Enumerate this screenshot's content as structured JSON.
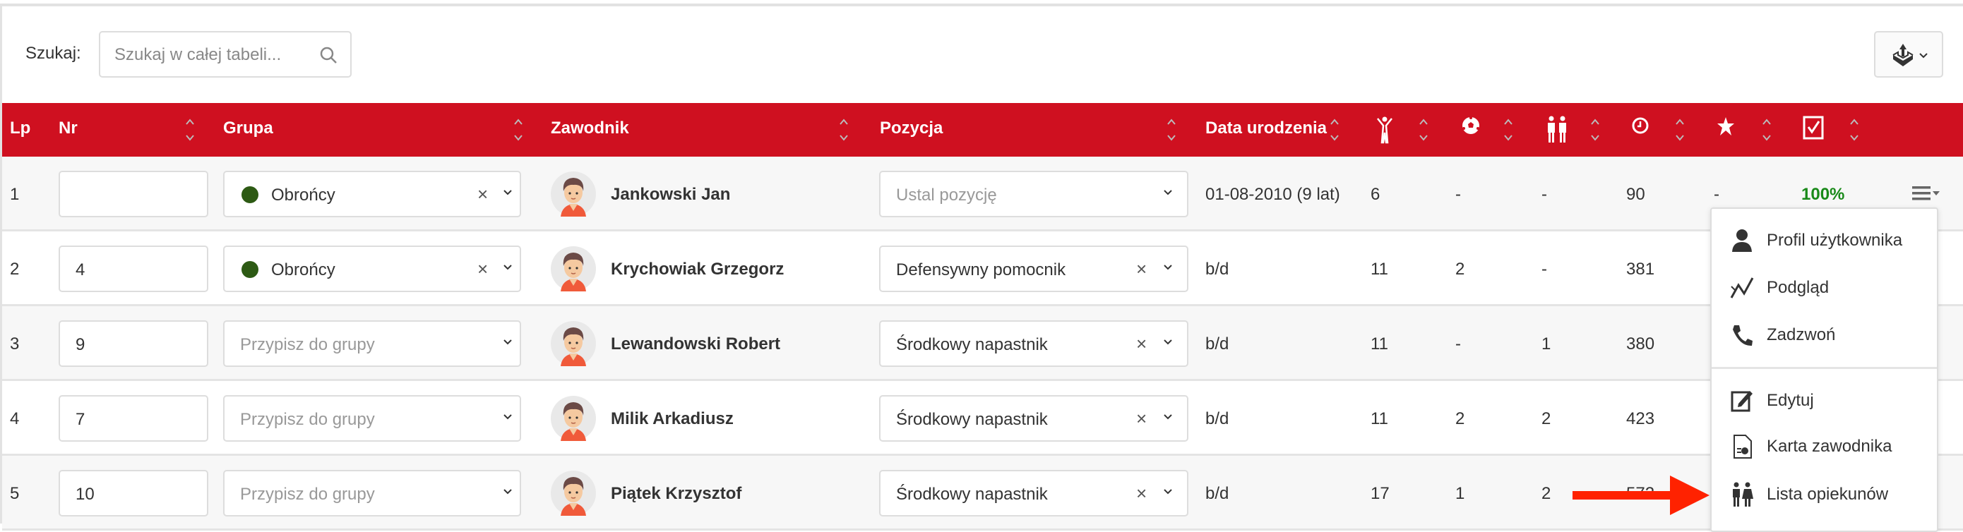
{
  "toolbar": {
    "search_label": "Szukaj:",
    "search_placeholder": "Szukaj w całej tabeli...",
    "export_icon": "export-upload-icon"
  },
  "colors": {
    "header": "#cf1020",
    "group_green": "#2d5a14",
    "percent_green": "#1a8a1a",
    "arrow": "#ff2200"
  },
  "table": {
    "headers": {
      "lp": "Lp",
      "nr": "Nr",
      "grupa": "Grupa",
      "zawodnik": "Zawodnik",
      "pozycja": "Pozycja",
      "data": "Data urodzenia"
    },
    "icon_columns": [
      "person-stretch-icon",
      "soccer-ball-icon",
      "people-icon",
      "clock-icon",
      "star-icon",
      "checkbox-icon"
    ],
    "rows": [
      {
        "lp": "1",
        "nr": "",
        "group": "Obrońcy",
        "group_placeholder": "",
        "player": "Jankowski Jan",
        "position": "",
        "position_placeholder": "Ustal pozycję",
        "birth": "01-08-2010 (9 lat)",
        "c1": "6",
        "c2": "-",
        "c3": "-",
        "c4": "90",
        "c5": "-",
        "c6": "100%"
      },
      {
        "lp": "2",
        "nr": "4",
        "group": "Obrońcy",
        "group_placeholder": "",
        "player": "Krychowiak Grzegorz",
        "position": "Defensywny pomocnik",
        "position_placeholder": "",
        "birth": "b/d",
        "c1": "11",
        "c2": "2",
        "c3": "-",
        "c4": "381"
      },
      {
        "lp": "3",
        "nr": "9",
        "group": "",
        "group_placeholder": "Przypisz do grupy",
        "player": "Lewandowski Robert",
        "position": "Środkowy napastnik",
        "position_placeholder": "",
        "birth": "b/d",
        "c1": "11",
        "c2": "-",
        "c3": "1",
        "c4": "380"
      },
      {
        "lp": "4",
        "nr": "7",
        "group": "",
        "group_placeholder": "Przypisz do grupy",
        "player": "Milik Arkadiusz",
        "position": "Środkowy napastnik",
        "position_placeholder": "",
        "birth": "b/d",
        "c1": "11",
        "c2": "2",
        "c3": "2",
        "c4": "423"
      },
      {
        "lp": "5",
        "nr": "10",
        "group": "",
        "group_placeholder": "Przypisz do grupy",
        "player": "Piątek Krzysztof",
        "position": "Środkowy napastnik",
        "position_placeholder": "",
        "birth": "b/d",
        "c1": "17",
        "c2": "1",
        "c3": "2",
        "c4": "572"
      }
    ]
  },
  "context_menu": {
    "items": [
      {
        "label": "Profil użytkownika",
        "icon": "user-icon"
      },
      {
        "label": "Podgląd",
        "icon": "chart-line-icon"
      },
      {
        "label": "Zadzwoń",
        "icon": "phone-icon"
      },
      {
        "label": "Edytuj",
        "icon": "edit-icon"
      },
      {
        "label": "Karta zawodnika",
        "icon": "report-file-icon"
      },
      {
        "label": "Lista opiekunów",
        "icon": "guardians-icon"
      }
    ]
  }
}
